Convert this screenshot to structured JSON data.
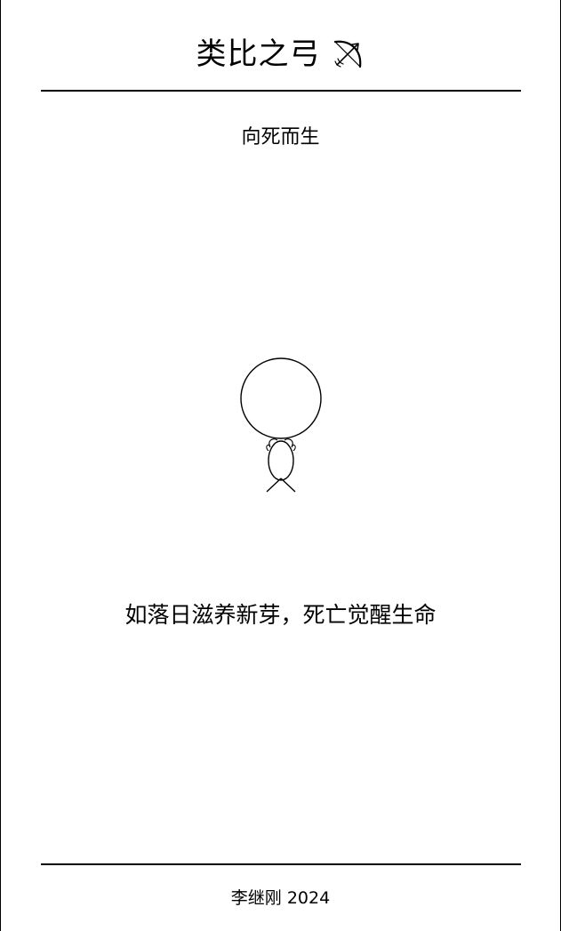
{
  "header": {
    "title": "类比之弓",
    "icon": "bow-and-arrow-icon"
  },
  "main": {
    "subtitle": "向死而生",
    "illustration_icon": "sun-over-sprout-figure-icon",
    "quote": "如落日滋养新芽，死亡觉醒生命"
  },
  "footer": {
    "credit": "李继刚 2024"
  },
  "colors": {
    "background": "#ffffff",
    "ink": "#000000"
  }
}
